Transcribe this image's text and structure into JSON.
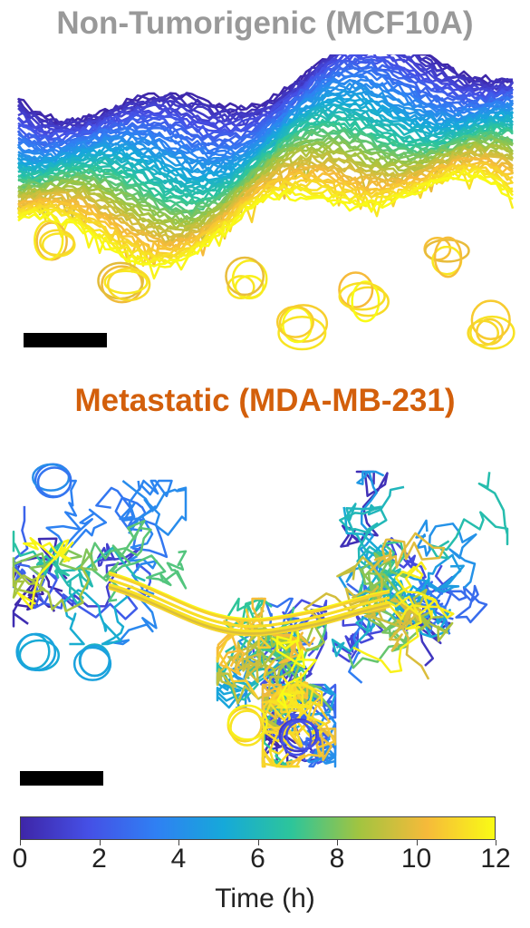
{
  "panels": {
    "top": {
      "title": "Non-Tumorigenic (MCF10A)",
      "title_color": "#999999"
    },
    "bottom": {
      "title": "Metastatic (MDA-MB-231)",
      "title_color": "#d35f0b"
    }
  },
  "scale_bar_color": "#000000",
  "colorbar": {
    "label": "Time (h)",
    "ticks": [
      "0",
      "2",
      "4",
      "6",
      "8",
      "10",
      "12"
    ],
    "min": 0,
    "max": 12,
    "colormap": "parula",
    "colors": [
      "#3e26a8",
      "#4550e6",
      "#2f80f3",
      "#16a9d9",
      "#2dc59a",
      "#a2c440",
      "#f6ba3a",
      "#f9fb15"
    ]
  }
}
